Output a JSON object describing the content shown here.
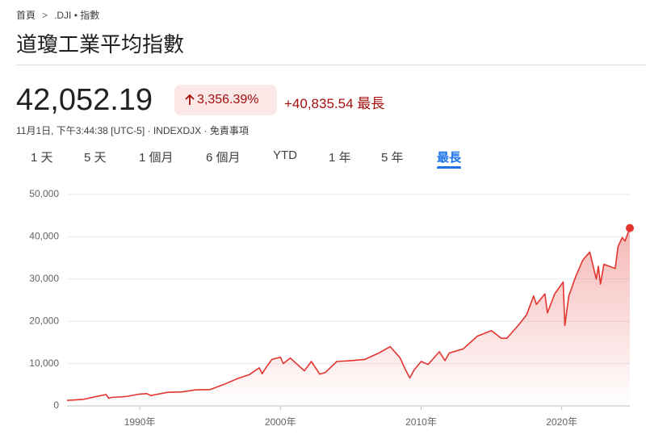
{
  "breadcrumb": {
    "home": "首頁",
    "current": ".DJI • 指數"
  },
  "header": {
    "title": "道瓊工業平均指數",
    "price": "42,052.19",
    "change_percent": "3,356.39%",
    "change_value": "+40,835.54",
    "change_period": "最長",
    "timestamp": "11月1日, 下午3:44:38 [UTC-5] · INDEXDJX · 免責事項"
  },
  "tabs": [
    "1 天",
    "5 天",
    "1 個月",
    "6 個月",
    "YTD",
    "1 年",
    "5 年",
    "最長"
  ],
  "selected_tab": 7,
  "chart_data": {
    "type": "line",
    "color": "#e3342f",
    "grid": true,
    "x": [
      1984.83,
      1986.0,
      1987.6,
      1987.8,
      1988.0,
      1989.0,
      1989.9,
      1990.5,
      1990.8,
      1991.0,
      1992.0,
      1993.0,
      1994.0,
      1995.0,
      1996.0,
      1997.0,
      1997.8,
      1998.5,
      1998.7,
      1999.0,
      1999.4,
      2000.0,
      2000.2,
      2000.7,
      2001.2,
      2001.7,
      2002.2,
      2002.8,
      2003.2,
      2004.0,
      2005.0,
      2006.0,
      2007.0,
      2007.8,
      2008.5,
      2008.9,
      2009.2,
      2009.5,
      2010.0,
      2010.5,
      2011.3,
      2011.7,
      2012.0,
      2013.0,
      2014.0,
      2015.0,
      2015.7,
      2016.1,
      2016.9,
      2017.5,
      2018.0,
      2018.2,
      2018.8,
      2018.98,
      2019.5,
      2020.1,
      2020.22,
      2020.5,
      2020.98,
      2021.5,
      2021.99,
      2022.45,
      2022.6,
      2022.75,
      2023.0,
      2023.4,
      2023.8,
      2024.0,
      2024.3,
      2024.5,
      2024.84
    ],
    "values": [
      1300,
      1550,
      2700,
      1800,
      2000,
      2200,
      2750,
      2900,
      2400,
      2600,
      3200,
      3300,
      3800,
      3850,
      5100,
      6500,
      7400,
      9000,
      7600,
      9200,
      11000,
      11500,
      10000,
      11300,
      9800,
      8300,
      10500,
      7500,
      7900,
      10500,
      10700,
      11000,
      12500,
      14000,
      11400,
      8500,
      6600,
      8500,
      10500,
      9800,
      12800,
      10700,
      12500,
      13500,
      16500,
      17800,
      16000,
      16000,
      19000,
      21500,
      26000,
      24000,
      26500,
      22000,
      26500,
      29300,
      19000,
      26000,
      30500,
      34500,
      36400,
      30000,
      33000,
      28800,
      33500,
      33000,
      32500,
      37700,
      39800,
      39000,
      42052.19
    ],
    "xlim": [
      1984.83,
      2024.84
    ],
    "ylim": [
      0,
      50000
    ],
    "xticks": [
      {
        "value": 1990,
        "label": "1990年"
      },
      {
        "value": 2000,
        "label": "2000年"
      },
      {
        "value": 2010,
        "label": "2010年"
      },
      {
        "value": 2020,
        "label": "2020年"
      }
    ],
    "yticks": [
      0,
      {
        "value": 10000,
        "label": "10,000"
      },
      {
        "value": 20000,
        "label": "20,000"
      },
      {
        "value": 30000,
        "label": "30,000"
      },
      {
        "value": 40000,
        "label": "40,000"
      },
      {
        "value": 50000,
        "label": "50,000"
      }
    ]
  }
}
